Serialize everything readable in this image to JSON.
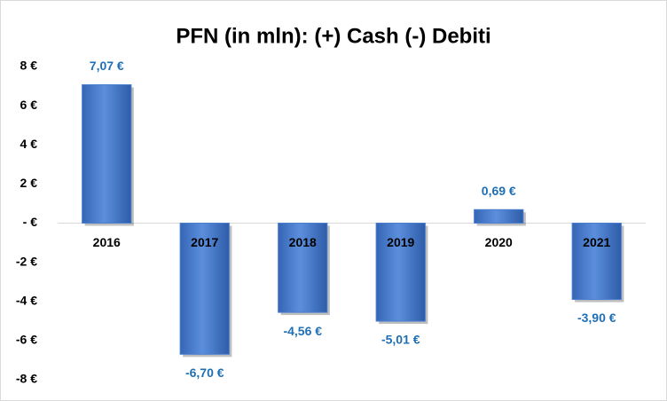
{
  "chart_data": {
    "type": "bar",
    "title": "PFN (in mln): (+) Cash (-) Debiti",
    "categories": [
      "2016",
      "2017",
      "2018",
      "2019",
      "2020",
      "2021"
    ],
    "values": [
      7.07,
      -6.7,
      -4.56,
      -5.01,
      0.69,
      -3.9
    ],
    "value_labels": [
      "7,07 €",
      "-6,70 €",
      "-4,56 €",
      "-5,01 €",
      "0,69 €",
      "-3,90 €"
    ],
    "color": "#4a7fd0",
    "ylim": [
      -8,
      8
    ],
    "yticks": [
      {
        "value": 8,
        "label": "8 €"
      },
      {
        "value": 6,
        "label": "6 €"
      },
      {
        "value": 4,
        "label": "4 €"
      },
      {
        "value": 2,
        "label": "2 €"
      },
      {
        "value": 0,
        "label": "- €"
      },
      {
        "value": -2,
        "label": "-2 €"
      },
      {
        "value": -4,
        "label": "-4 €"
      },
      {
        "value": -6,
        "label": "-6 €"
      },
      {
        "value": -8,
        "label": "-8 €"
      }
    ],
    "grid": false
  }
}
